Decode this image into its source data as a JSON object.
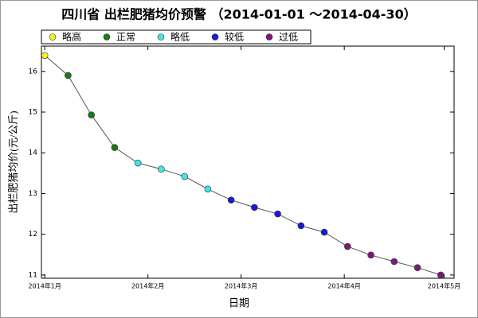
{
  "chart_data": {
    "type": "line",
    "title": "四川省 出栏肥猪均价预警 （2014-01-01 ～2014-04-30）",
    "x_label": "日期",
    "y_label": "出栏肥猪均价(元/公斤)",
    "legend": [
      {
        "name": "略高",
        "color": "#f2f22a"
      },
      {
        "name": "正常",
        "color": "#1a7a1a"
      },
      {
        "name": "略低",
        "color": "#3fe6e6"
      },
      {
        "name": "较低",
        "color": "#1a1ad0"
      },
      {
        "name": "过低",
        "color": "#7a1a7a"
      }
    ],
    "x": [
      0,
      7,
      14,
      21,
      28,
      35,
      42,
      49,
      56,
      63,
      70,
      77,
      84,
      91,
      98,
      105,
      112,
      119
    ],
    "series": [
      {
        "color": "#555555",
        "values": [
          16.39,
          15.9,
          14.93,
          14.13,
          13.75,
          13.6,
          13.42,
          13.11,
          12.84,
          12.66,
          12.5,
          12.21,
          12.05,
          11.7,
          11.49,
          11.33,
          11.18,
          11.0
        ],
        "point_colors": [
          "#f2f22a",
          "#1a7a1a",
          "#1a7a1a",
          "#1a7a1a",
          "#3fe6e6",
          "#3fe6e6",
          "#3fe6e6",
          "#3fe6e6",
          "#1a1ad0",
          "#1a1ad0",
          "#1a1ad0",
          "#1a1ad0",
          "#1a1ad0",
          "#7a1a7a",
          "#7a1a7a",
          "#7a1a7a",
          "#7a1a7a",
          "#7a1a7a"
        ]
      }
    ],
    "xlim": [
      -1,
      123
    ],
    "xticks": [
      {
        "value": 0,
        "label": "2014年1月"
      },
      {
        "value": 31,
        "label": "2014年2月"
      },
      {
        "value": 59,
        "label": "2014年3月"
      },
      {
        "value": 90,
        "label": "2014年4月"
      },
      {
        "value": 120,
        "label": "2014年5月"
      }
    ],
    "ylim": [
      10.92,
      16.62
    ],
    "yticks": [
      11,
      12,
      13,
      14,
      15,
      16
    ]
  }
}
